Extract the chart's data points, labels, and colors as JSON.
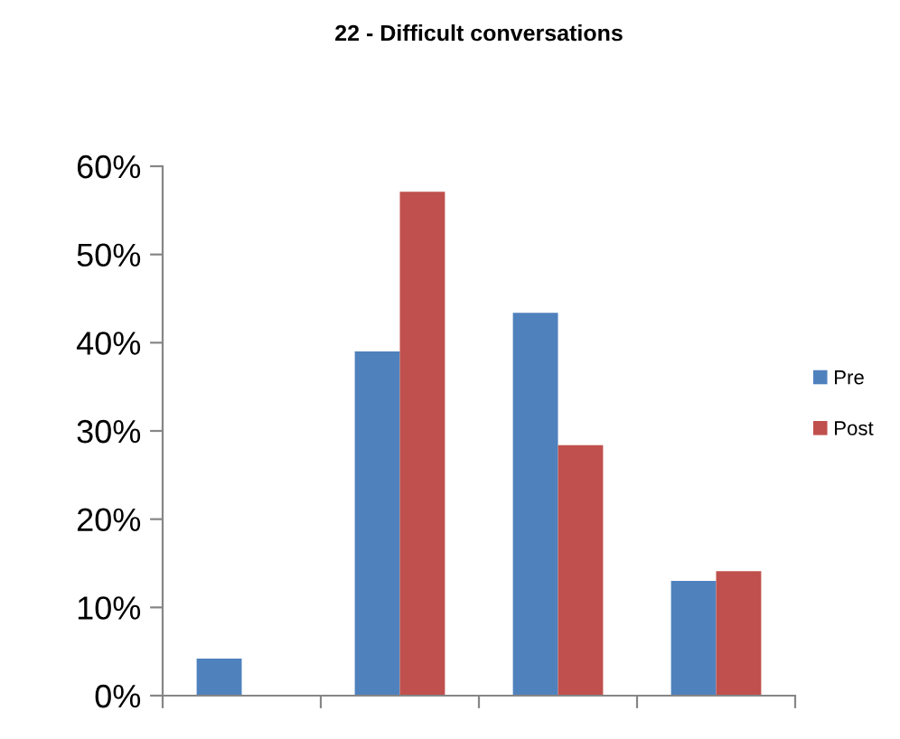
{
  "chart_data": {
    "type": "bar",
    "title": "22 - Difficult conversations",
    "categories": [
      null,
      null,
      null,
      null
    ],
    "series": [
      {
        "name": "Pre",
        "color": "#4f81bd",
        "values": [
          4.2,
          39.0,
          43.4,
          13.0
        ]
      },
      {
        "name": "Post",
        "color": "#c0504d",
        "values": [
          0,
          57.1,
          28.4,
          14.1
        ]
      }
    ],
    "ylim": [
      0,
      60
    ],
    "yticks": [
      {
        "value": 0,
        "label": "0%"
      },
      {
        "value": 10,
        "label": "10%"
      },
      {
        "value": 20,
        "label": "20%"
      },
      {
        "value": 30,
        "label": "30%"
      },
      {
        "value": 40,
        "label": "40%"
      },
      {
        "value": 50,
        "label": "50%"
      },
      {
        "value": 60,
        "label": "60%"
      }
    ],
    "grid": false,
    "legend": "right",
    "tick_labels": "y"
  }
}
